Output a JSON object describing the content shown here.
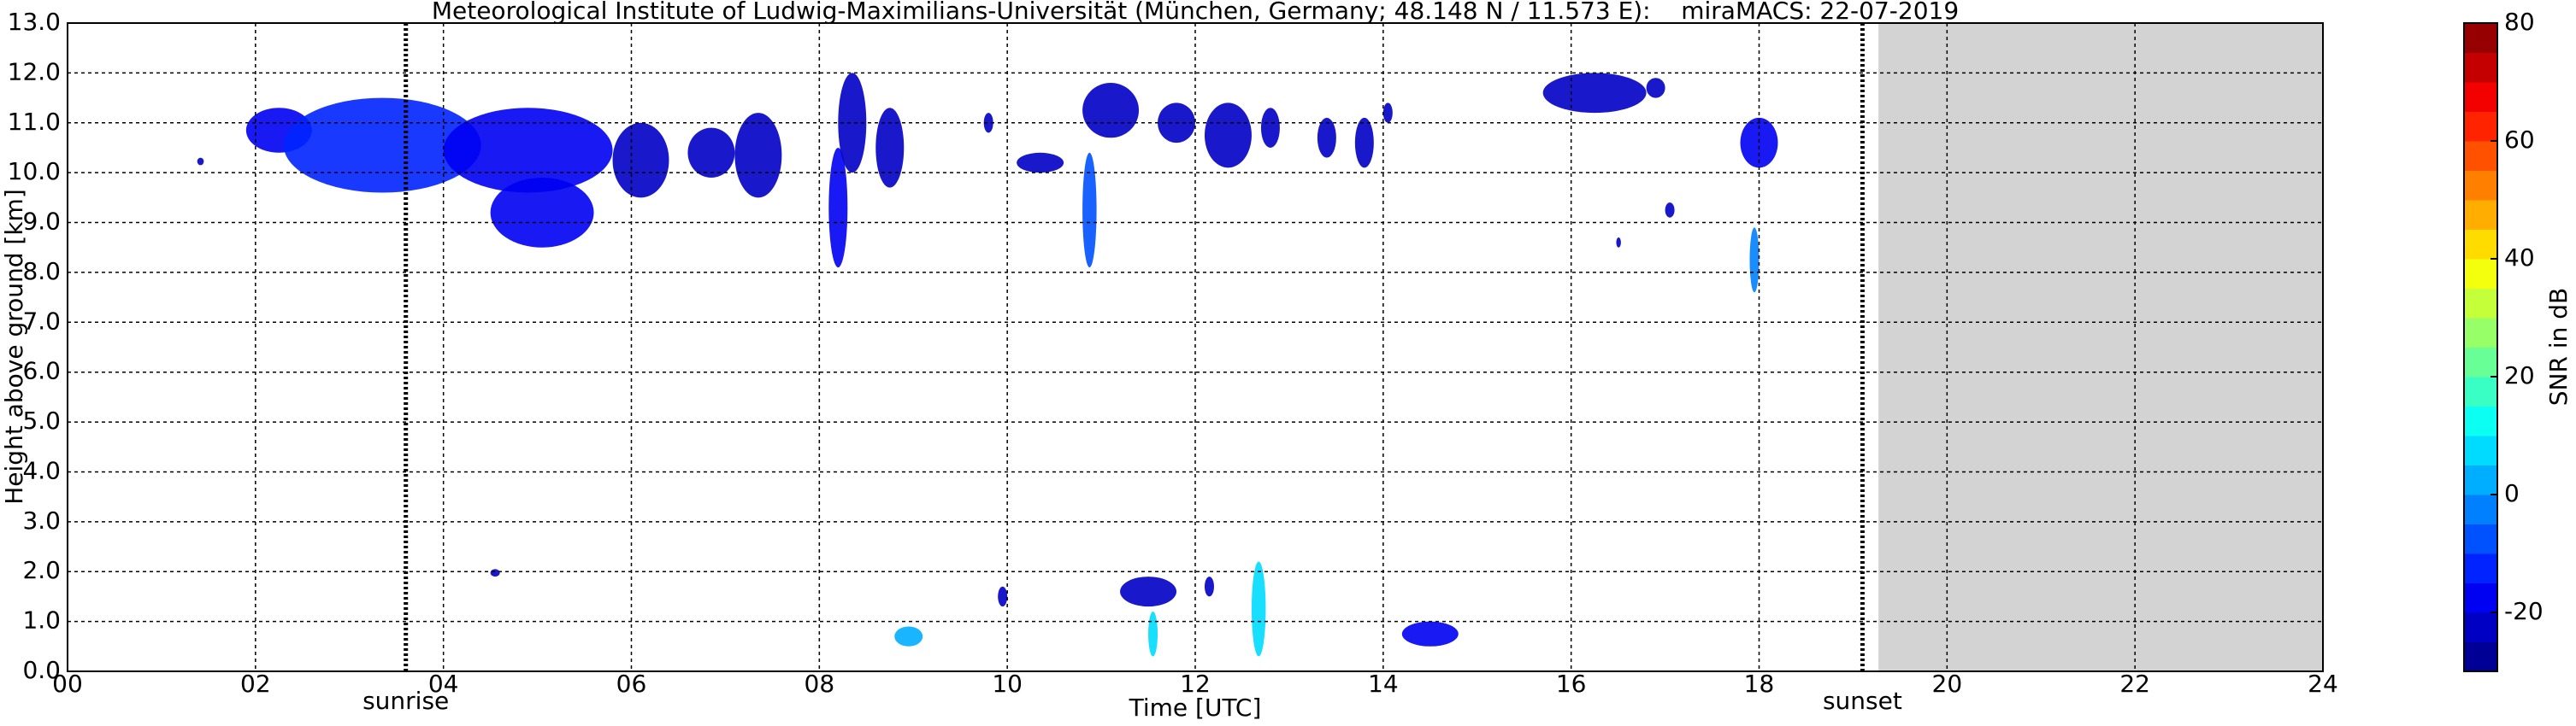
{
  "chart_data": {
    "type": "radar-heatmap",
    "title": "Meteorological Institute of Ludwig-Maximilians-Universität (München, Germany; 48.148 N / 11.573 E):    miraMACS: 22-07-2019",
    "x_label": "Time [UTC]",
    "y_label": "Height above ground [km]",
    "colorbar_label": "SNR in dB",
    "xlim": [
      0,
      24
    ],
    "xticks": [
      {
        "value": 0,
        "label": "00"
      },
      {
        "value": 2,
        "label": "02"
      },
      {
        "value": 4,
        "label": "04"
      },
      {
        "value": 6,
        "label": "06"
      },
      {
        "value": 8,
        "label": "08"
      },
      10,
      12,
      14,
      16,
      18,
      20,
      22,
      24
    ],
    "ylim": [
      0,
      13
    ],
    "yticks": [
      {
        "value": 0,
        "label": "0.0"
      },
      {
        "value": 1,
        "label": "1.0"
      },
      {
        "value": 2,
        "label": "2.0"
      },
      {
        "value": 3,
        "label": "3.0"
      },
      {
        "value": 4,
        "label": "4.0"
      },
      {
        "value": 5,
        "label": "5.0"
      },
      {
        "value": 6,
        "label": "6.0"
      },
      {
        "value": 7,
        "label": "7.0"
      },
      {
        "value": 8,
        "label": "8.0"
      },
      {
        "value": 9,
        "label": "9.0"
      },
      {
        "value": 10,
        "label": "10.0"
      },
      {
        "value": 11,
        "label": "11.0"
      },
      {
        "value": 12,
        "label": "12.0"
      },
      {
        "value": 13,
        "label": "13.0"
      }
    ],
    "clim": [
      -30,
      80
    ],
    "cticks": [
      -20,
      0,
      20,
      40,
      60,
      80
    ],
    "colormap": "jet",
    "grid": true,
    "annotations": [
      {
        "text": "sunrise",
        "x": 3.6
      },
      {
        "text": "sunset",
        "x": 19.1
      }
    ],
    "no_data_from": 19.27,
    "echoes": [
      {
        "start": 1.38,
        "end": 1.45,
        "base": 10.15,
        "top": 10.3,
        "snr": -22
      },
      {
        "start": 1.9,
        "end": 2.6,
        "base": 10.4,
        "top": 11.3,
        "snr": -20
      },
      {
        "start": 2.3,
        "end": 4.4,
        "base": 9.6,
        "top": 11.5,
        "snr": -14
      },
      {
        "start": 4.0,
        "end": 5.8,
        "base": 9.6,
        "top": 11.3,
        "snr": -17
      },
      {
        "start": 4.5,
        "end": 5.6,
        "base": 8.5,
        "top": 9.9,
        "snr": -16
      },
      {
        "start": 5.8,
        "end": 6.4,
        "base": 9.5,
        "top": 11.0,
        "snr": -22
      },
      {
        "start": 6.6,
        "end": 7.1,
        "base": 9.9,
        "top": 10.9,
        "snr": -22
      },
      {
        "start": 7.1,
        "end": 7.6,
        "base": 9.5,
        "top": 11.2,
        "snr": -22
      },
      {
        "start": 8.1,
        "end": 8.3,
        "base": 8.1,
        "top": 10.5,
        "snr": -19
      },
      {
        "start": 8.2,
        "end": 8.5,
        "base": 10.0,
        "top": 12.0,
        "snr": -22
      },
      {
        "start": 8.6,
        "end": 8.9,
        "base": 9.7,
        "top": 11.3,
        "snr": -22
      },
      {
        "start": 9.75,
        "end": 9.85,
        "base": 10.8,
        "top": 11.2,
        "snr": -22
      },
      {
        "start": 10.1,
        "end": 10.6,
        "base": 10.0,
        "top": 10.4,
        "snr": -22
      },
      {
        "start": 10.8,
        "end": 10.95,
        "base": 8.1,
        "top": 10.4,
        "snr": -10
      },
      {
        "start": 10.8,
        "end": 11.4,
        "base": 10.7,
        "top": 11.8,
        "snr": -22
      },
      {
        "start": 11.6,
        "end": 12.0,
        "base": 10.6,
        "top": 11.4,
        "snr": -22
      },
      {
        "start": 12.1,
        "end": 12.6,
        "base": 10.1,
        "top": 11.4,
        "snr": -22
      },
      {
        "start": 12.7,
        "end": 12.9,
        "base": 10.5,
        "top": 11.3,
        "snr": -22
      },
      {
        "start": 13.3,
        "end": 13.5,
        "base": 10.3,
        "top": 11.1,
        "snr": -22
      },
      {
        "start": 13.7,
        "end": 13.9,
        "base": 10.1,
        "top": 11.1,
        "snr": -22
      },
      {
        "start": 14.0,
        "end": 14.1,
        "base": 11.0,
        "top": 11.4,
        "snr": -22
      },
      {
        "start": 15.7,
        "end": 16.8,
        "base": 11.2,
        "top": 12.0,
        "snr": -22
      },
      {
        "start": 16.8,
        "end": 17.0,
        "base": 11.5,
        "top": 11.9,
        "snr": -22
      },
      {
        "start": 17.0,
        "end": 17.1,
        "base": 9.1,
        "top": 9.4,
        "snr": -22
      },
      {
        "start": 16.48,
        "end": 16.53,
        "base": 8.5,
        "top": 8.7,
        "snr": -22
      },
      {
        "start": 17.8,
        "end": 18.2,
        "base": 10.1,
        "top": 11.1,
        "snr": -20
      },
      {
        "start": 17.9,
        "end": 18.0,
        "base": 7.6,
        "top": 8.9,
        "snr": -5
      },
      {
        "start": 4.5,
        "end": 4.6,
        "base": 1.9,
        "top": 2.05,
        "snr": -22
      },
      {
        "start": 9.9,
        "end": 10.0,
        "base": 1.3,
        "top": 1.7,
        "snr": -22
      },
      {
        "start": 11.2,
        "end": 11.8,
        "base": 1.3,
        "top": 1.9,
        "snr": -22
      },
      {
        "start": 12.1,
        "end": 12.2,
        "base": 1.5,
        "top": 1.9,
        "snr": -22
      },
      {
        "start": 12.6,
        "end": 12.75,
        "base": 0.3,
        "top": 2.2,
        "snr": 8
      },
      {
        "start": 11.5,
        "end": 11.6,
        "base": 0.3,
        "top": 1.2,
        "snr": 5
      },
      {
        "start": 8.8,
        "end": 9.1,
        "base": 0.5,
        "top": 0.9,
        "snr": 0
      },
      {
        "start": 14.2,
        "end": 14.8,
        "base": 0.5,
        "top": 1.0,
        "snr": -18
      }
    ]
  }
}
